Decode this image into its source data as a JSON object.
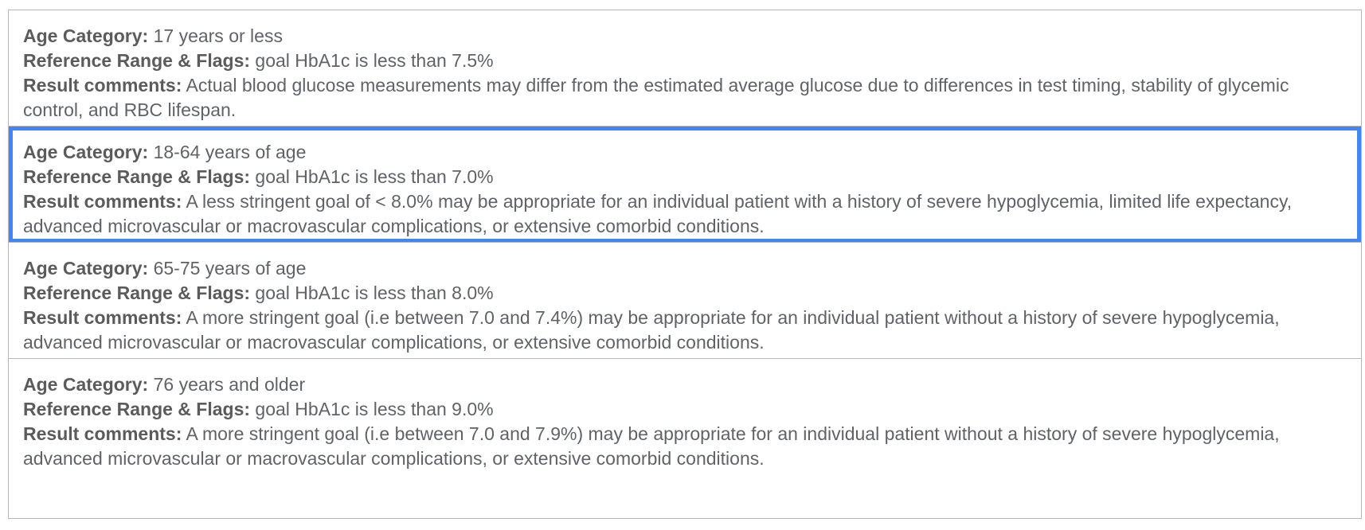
{
  "labels": {
    "age": "Age Category:",
    "range": "Reference Range & Flags:",
    "comments": "Result comments:"
  },
  "selected_color": "#4285f4",
  "entries": [
    {
      "age": "17 years or less",
      "range": "goal HbA1c is less than 7.5%",
      "comments": "Actual blood glucose measurements may differ from the estimated average glucose due to differences in test timing, stability of glycemic control, and RBC lifespan.",
      "selected": false
    },
    {
      "age": "18-64 years of age",
      "range": "goal HbA1c is less than 7.0%",
      "comments": "A less stringent goal of < 8.0% may be appropriate for an individual patient with a history of severe hypoglycemia, limited life expectancy, advanced microvascular or macrovascular complications, or extensive comorbid conditions.",
      "selected": true
    },
    {
      "age": "65-75 years of age",
      "range": "goal HbA1c is less than 8.0%",
      "comments": "A more stringent goal (i.e between 7.0 and 7.4%) may be appropriate for an individual patient without a history of severe hypoglycemia, advanced microvascular or macrovascular complications, or extensive comorbid conditions.",
      "selected": false
    },
    {
      "age": "76 years and older",
      "range": "goal HbA1c is less than 9.0%",
      "comments": "A more stringent goal (i.e between 7.0 and 7.9%) may be appropriate for an individual patient without a history of severe hypoglycemia, advanced microvascular or macrovascular complications, or extensive comorbid conditions.",
      "selected": false
    }
  ]
}
